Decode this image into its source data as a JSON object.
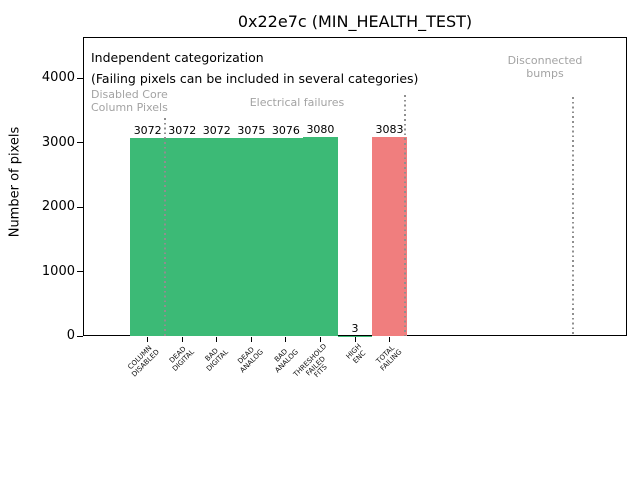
{
  "colors": {
    "green": "#3cba76",
    "red": "#f07e7e",
    "group_label_gray": "#a3a3a3",
    "separator_gray": "#8f8f8f",
    "axis_black": "#000000"
  },
  "chart_data": {
    "type": "bar",
    "title": "0x22e7c (MIN_HEALTH_TEST)",
    "xlabel": "",
    "ylabel": "Number of pixels",
    "ylim": [
      0,
      4636
    ],
    "yticks": [
      0,
      1000,
      2000,
      3000,
      4000
    ],
    "grid": false,
    "legend": "none",
    "categories": [
      "COLUMN\nDISABLED",
      "DEAD\nDIGITAL",
      "BAD\nDIGITAL",
      "DEAD\nANALOG",
      "BAD\nANALOG",
      "THRESHOLD\nFAILED\nFITS",
      "HIGH\nENC",
      "TOTAL\nFAILING"
    ],
    "values": [
      3072,
      3072,
      3072,
      3075,
      3076,
      3080,
      3,
      3083
    ],
    "value_labels": [
      "3072",
      "3072",
      "3072",
      "3075",
      "3076",
      "3080",
      "3",
      "3083"
    ],
    "bar_color_keys": [
      "green",
      "green",
      "green",
      "green",
      "green",
      "green",
      "green",
      "red"
    ],
    "annotations": {
      "independent_line1": "Independent categorization",
      "independent_line2": "(Failing pixels can be included in several categories)",
      "groups": [
        "Disabled Core\nColumn Pixels",
        "Electrical failures",
        "Disconnected\nbumps"
      ]
    }
  }
}
